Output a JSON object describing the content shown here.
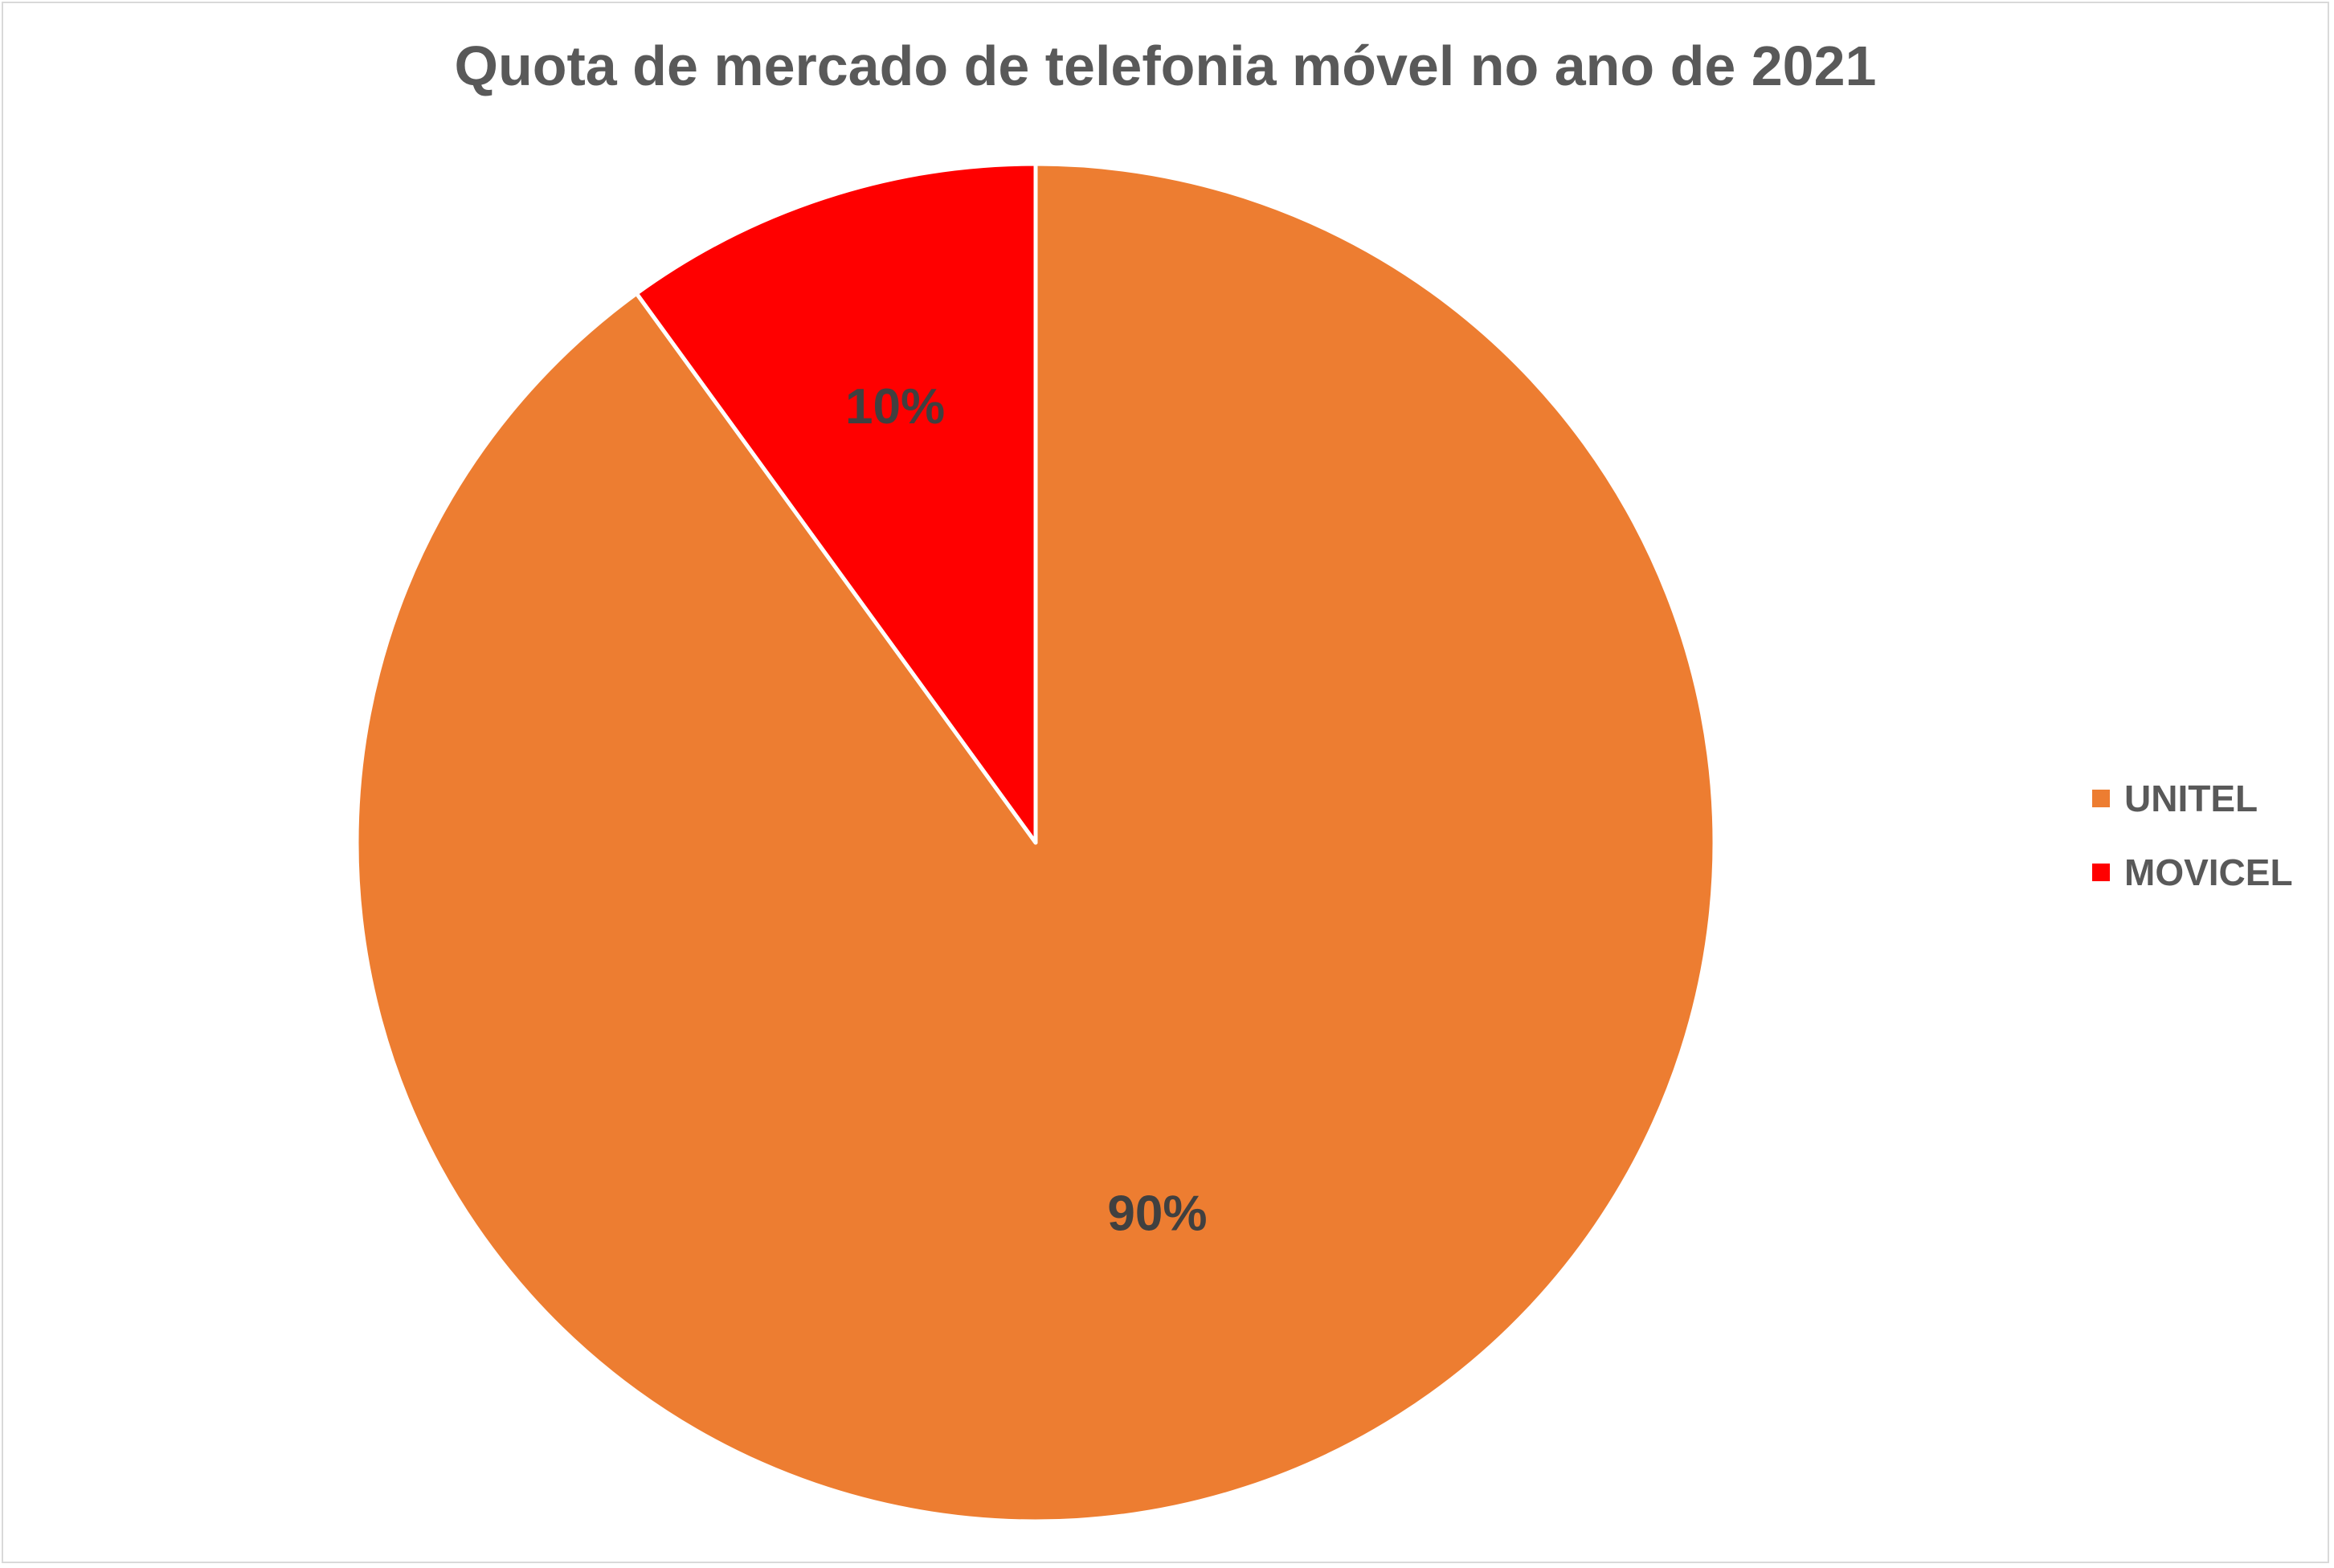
{
  "chart_data": {
    "type": "pie",
    "title": "Quota de mercado de telefonia móvel no ano de 2021",
    "legend_position": "right",
    "slices": [
      {
        "label": "UNITEL",
        "value": 90,
        "data_label": "90%",
        "color": "#ED7D31"
      },
      {
        "label": "MOVICEL",
        "value": 10,
        "data_label": "10%",
        "color": "#FF0000"
      }
    ]
  }
}
